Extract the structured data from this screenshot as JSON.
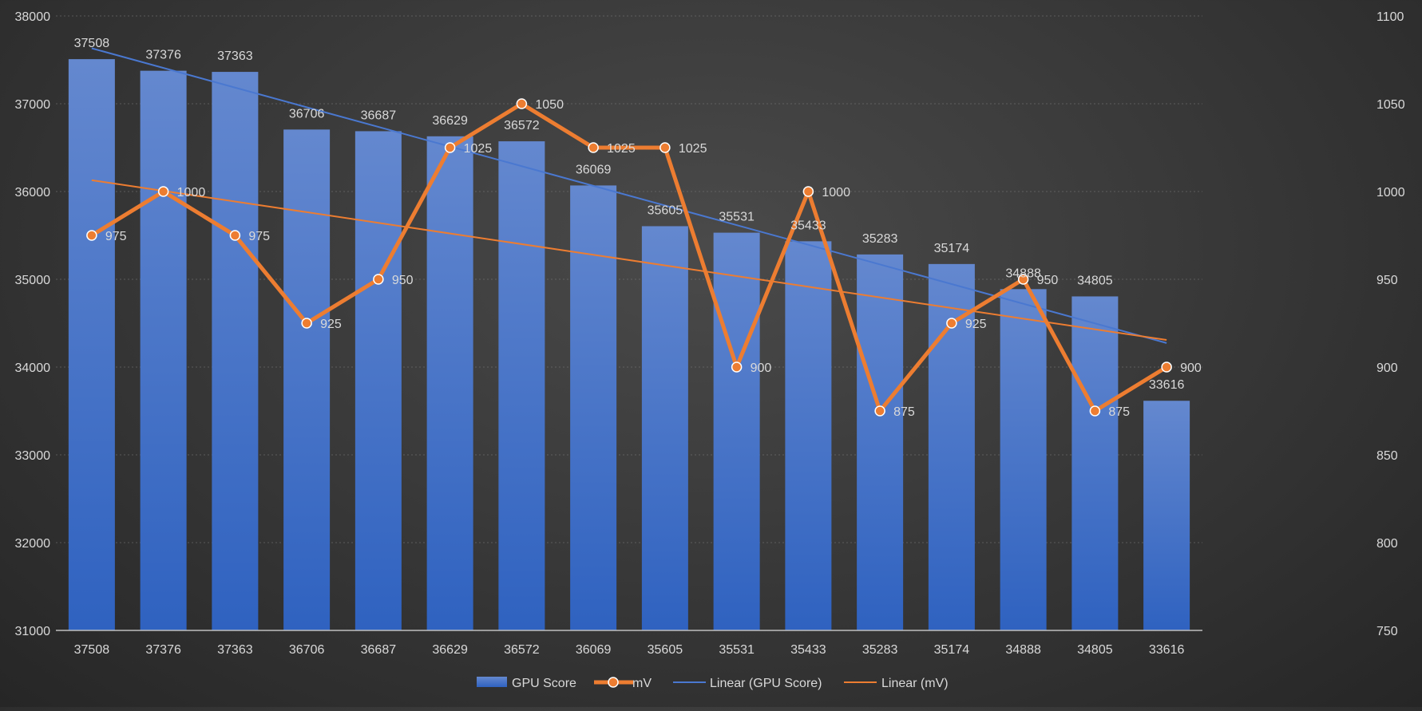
{
  "chart_data": {
    "type": "bar",
    "categories": [
      "37508",
      "37376",
      "37363",
      "36706",
      "36687",
      "36629",
      "36572",
      "36069",
      "35605",
      "35531",
      "35433",
      "35283",
      "35174",
      "34888",
      "34805",
      "33616"
    ],
    "series": [
      {
        "name": "GPU Score",
        "type": "bar",
        "axis": "left",
        "values": [
          37508,
          37376,
          37363,
          36706,
          36687,
          36629,
          36572,
          36069,
          35605,
          35531,
          35433,
          35283,
          35174,
          34888,
          34805,
          33616
        ],
        "color": "#4472c4"
      },
      {
        "name": "mV",
        "type": "line",
        "axis": "right",
        "values": [
          975,
          1000,
          975,
          925,
          950,
          1025,
          1050,
          1025,
          1025,
          900,
          1000,
          875,
          925,
          950,
          875,
          900
        ],
        "color": "#ed7d31"
      }
    ],
    "trendlines": [
      {
        "name": "Linear (GPU Score)",
        "of": "GPU Score",
        "color": "#4472c4"
      },
      {
        "name": "Linear (mV)",
        "of": "mV",
        "color": "#ed7d31"
      }
    ],
    "ylim_left": [
      31000,
      38000
    ],
    "ylim_right": [
      750,
      1100
    ],
    "yticks_left": [
      "31000",
      "32000",
      "33000",
      "34000",
      "35000",
      "36000",
      "37000",
      "38000"
    ],
    "yticks_right": [
      "750",
      "800",
      "850",
      "900",
      "950",
      "1000",
      "1050",
      "1100"
    ],
    "grid": true,
    "legend_position": "bottom",
    "title": "",
    "xlabel": "",
    "ylabel": ""
  }
}
